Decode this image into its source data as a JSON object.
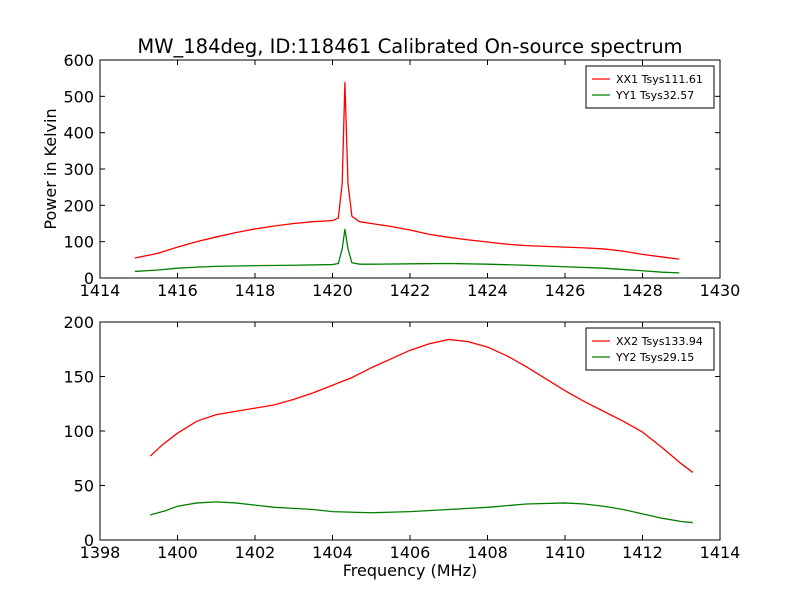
{
  "figure": {
    "title": "MW_184deg, ID:118461 Calibrated On-source spectrum"
  },
  "chart_data": [
    {
      "type": "line",
      "title": "MW_184deg, ID:118461 Calibrated On-source spectrum",
      "xlabel": "",
      "ylabel": "Power in Kelvin",
      "xlim": [
        1414,
        1430
      ],
      "ylim": [
        0,
        600
      ],
      "xticks": [
        1414,
        1416,
        1418,
        1420,
        1422,
        1424,
        1426,
        1428,
        1430
      ],
      "yticks": [
        0,
        100,
        200,
        300,
        400,
        500,
        600
      ],
      "grid": false,
      "legend_position": "top-right",
      "series": [
        {
          "name": "XX1 Tsys111.61",
          "color": "#ff0000",
          "points": [
            [
              1414.9,
              55
            ],
            [
              1415.5,
              68
            ],
            [
              1416.0,
              85
            ],
            [
              1416.5,
              100
            ],
            [
              1417.0,
              113
            ],
            [
              1417.5,
              125
            ],
            [
              1418.0,
              135
            ],
            [
              1418.5,
              143
            ],
            [
              1419.0,
              150
            ],
            [
              1419.5,
              155
            ],
            [
              1420.0,
              158
            ],
            [
              1420.15,
              165
            ],
            [
              1420.25,
              260
            ],
            [
              1420.32,
              538
            ],
            [
              1420.4,
              260
            ],
            [
              1420.5,
              170
            ],
            [
              1420.7,
              155
            ],
            [
              1421.0,
              150
            ],
            [
              1421.5,
              142
            ],
            [
              1422.0,
              132
            ],
            [
              1422.5,
              120
            ],
            [
              1423.0,
              112
            ],
            [
              1423.5,
              105
            ],
            [
              1424.0,
              99
            ],
            [
              1424.5,
              93
            ],
            [
              1425.0,
              89
            ],
            [
              1425.5,
              87
            ],
            [
              1426.0,
              85
            ],
            [
              1426.5,
              83
            ],
            [
              1427.0,
              80
            ],
            [
              1427.5,
              74
            ],
            [
              1428.0,
              65
            ],
            [
              1428.5,
              58
            ],
            [
              1428.95,
              52
            ]
          ]
        },
        {
          "name": "YY1 Tsys32.57",
          "color": "#008000",
          "points": [
            [
              1414.9,
              18
            ],
            [
              1415.5,
              22
            ],
            [
              1416.0,
              27
            ],
            [
              1416.5,
              30
            ],
            [
              1417.0,
              32
            ],
            [
              1418.0,
              34
            ],
            [
              1419.0,
              35
            ],
            [
              1420.0,
              37
            ],
            [
              1420.15,
              40
            ],
            [
              1420.25,
              80
            ],
            [
              1420.32,
              134
            ],
            [
              1420.4,
              80
            ],
            [
              1420.5,
              42
            ],
            [
              1420.7,
              38
            ],
            [
              1421.0,
              38
            ],
            [
              1422.0,
              39
            ],
            [
              1423.0,
              40
            ],
            [
              1424.0,
              38
            ],
            [
              1425.0,
              35
            ],
            [
              1426.0,
              31
            ],
            [
              1427.0,
              27
            ],
            [
              1428.0,
              20
            ],
            [
              1428.5,
              16
            ],
            [
              1428.95,
              14
            ]
          ]
        }
      ]
    },
    {
      "type": "line",
      "title": "",
      "xlabel": "Frequency (MHz)",
      "ylabel": "",
      "xlim": [
        1398,
        1414
      ],
      "ylim": [
        0,
        200
      ],
      "xticks": [
        1398,
        1400,
        1402,
        1404,
        1406,
        1408,
        1410,
        1412,
        1414
      ],
      "yticks": [
        0,
        50,
        100,
        150,
        200
      ],
      "grid": false,
      "legend_position": "top-right",
      "series": [
        {
          "name": "XX2 Tsys133.94",
          "color": "#ff0000",
          "points": [
            [
              1399.3,
              77
            ],
            [
              1399.6,
              87
            ],
            [
              1400.0,
              98
            ],
            [
              1400.5,
              109
            ],
            [
              1401.0,
              115
            ],
            [
              1401.5,
              118
            ],
            [
              1402.0,
              121
            ],
            [
              1402.5,
              124
            ],
            [
              1403.0,
              129
            ],
            [
              1403.5,
              135
            ],
            [
              1404.0,
              142
            ],
            [
              1404.5,
              149
            ],
            [
              1405.0,
              158
            ],
            [
              1405.5,
              166
            ],
            [
              1406.0,
              174
            ],
            [
              1406.5,
              180
            ],
            [
              1407.0,
              184
            ],
            [
              1407.5,
              182
            ],
            [
              1408.0,
              177
            ],
            [
              1408.5,
              169
            ],
            [
              1409.0,
              159
            ],
            [
              1409.5,
              148
            ],
            [
              1410.0,
              137
            ],
            [
              1410.5,
              127
            ],
            [
              1411.0,
              118
            ],
            [
              1411.5,
              109
            ],
            [
              1412.0,
              99
            ],
            [
              1412.5,
              85
            ],
            [
              1413.0,
              70
            ],
            [
              1413.3,
              62
            ]
          ]
        },
        {
          "name": "YY2 Tsys29.15",
          "color": "#008000",
          "points": [
            [
              1399.3,
              23
            ],
            [
              1399.7,
              27
            ],
            [
              1400.0,
              31
            ],
            [
              1400.5,
              34
            ],
            [
              1401.0,
              35
            ],
            [
              1401.5,
              34
            ],
            [
              1402.0,
              32
            ],
            [
              1402.5,
              30
            ],
            [
              1403.0,
              29
            ],
            [
              1403.5,
              28
            ],
            [
              1404.0,
              26
            ],
            [
              1405.0,
              25
            ],
            [
              1406.0,
              26
            ],
            [
              1407.0,
              28
            ],
            [
              1408.0,
              30
            ],
            [
              1409.0,
              33
            ],
            [
              1410.0,
              34
            ],
            [
              1410.5,
              33
            ],
            [
              1411.0,
              31
            ],
            [
              1411.5,
              28
            ],
            [
              1412.0,
              24
            ],
            [
              1412.5,
              20
            ],
            [
              1413.0,
              17
            ],
            [
              1413.3,
              16
            ]
          ]
        }
      ]
    }
  ]
}
